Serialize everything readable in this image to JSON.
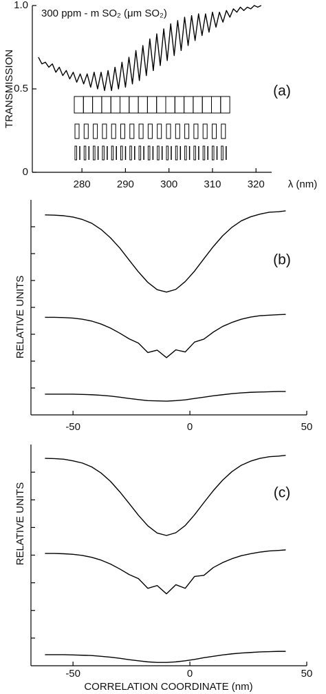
{
  "chart_data": [
    {
      "type": "line",
      "title": "300 ppm - m SO₂ (μm SO₂)",
      "y_label": "TRANSMISSION",
      "x_label": "λ (nm)",
      "annotation": "(a)",
      "x": [
        270.0,
        270.8,
        271.6,
        272.4,
        273.2,
        274.0,
        274.8,
        275.6,
        276.4,
        277.2,
        278.0,
        278.8,
        279.6,
        280.4,
        281.2,
        282.0,
        282.8,
        283.6,
        284.4,
        285.2,
        286.0,
        286.8,
        287.6,
        288.4,
        289.2,
        290.0,
        290.8,
        291.6,
        292.4,
        293.2,
        294.0,
        294.8,
        295.6,
        296.4,
        297.2,
        298.0,
        298.8,
        299.6,
        300.4,
        301.2,
        302.0,
        302.8,
        303.6,
        304.4,
        305.2,
        306.0,
        306.8,
        307.6,
        308.4,
        309.2,
        310.0,
        310.8,
        311.6,
        312.4,
        313.2,
        314.0,
        314.8,
        315.6,
        316.4,
        317.2,
        318.0,
        318.8,
        319.6,
        320.4,
        321.2
      ],
      "series": [
        {
          "color": "#000000",
          "values": [
            0.69,
            0.65,
            0.66,
            0.63,
            0.65,
            0.6,
            0.63,
            0.58,
            0.61,
            0.56,
            0.6,
            0.54,
            0.59,
            0.53,
            0.59,
            0.51,
            0.6,
            0.5,
            0.6,
            0.49,
            0.61,
            0.49,
            0.63,
            0.5,
            0.66,
            0.51,
            0.69,
            0.53,
            0.73,
            0.55,
            0.76,
            0.58,
            0.8,
            0.61,
            0.83,
            0.64,
            0.86,
            0.67,
            0.89,
            0.7,
            0.91,
            0.73,
            0.93,
            0.76,
            0.94,
            0.79,
            0.95,
            0.82,
            0.95,
            0.84,
            0.96,
            0.87,
            0.96,
            0.9,
            0.97,
            0.93,
            0.98,
            0.96,
            0.99,
            0.97,
            0.99,
            0.98,
            1.0,
            0.99,
            1.0
          ]
        }
      ],
      "xlim": [
        268.6,
        323.6
      ],
      "xticks": [
        280,
        290,
        300,
        310,
        320
      ],
      "ylim": [
        0,
        1
      ],
      "yticks": [
        0,
        0.5,
        {
          "value": 1,
          "label": "1.0"
        }
      ]
    },
    {
      "type": "line",
      "y_label": "RELATIVE UNITS",
      "annotation": "(b)",
      "x": [
        -62,
        -58,
        -54,
        -50,
        -46,
        -42,
        -38,
        -34,
        -30,
        -26,
        -22,
        -18,
        -14,
        -10,
        -6,
        -2,
        2,
        6,
        10,
        14,
        18,
        22,
        26,
        30,
        34,
        38,
        41
      ],
      "series": [
        {
          "color": "#000000",
          "values": [
            7.44,
            7.43,
            7.41,
            7.36,
            7.27,
            7.13,
            6.9,
            6.59,
            6.21,
            5.76,
            5.32,
            4.93,
            4.66,
            4.57,
            4.67,
            4.96,
            5.35,
            5.81,
            6.26,
            6.66,
            6.98,
            7.22,
            7.37,
            7.47,
            7.54,
            7.56,
            7.59
          ]
        },
        {
          "color": "#000000",
          "values": [
            3.63,
            3.63,
            3.62,
            3.6,
            3.56,
            3.49,
            3.38,
            3.23,
            3.04,
            2.83,
            2.67,
            2.32,
            2.41,
            2.13,
            2.42,
            2.34,
            2.71,
            2.82,
            3.08,
            3.29,
            3.44,
            3.56,
            3.64,
            3.69,
            3.71,
            3.73,
            3.74
          ]
        },
        {
          "color": "#000000",
          "values": [
            0.77,
            0.77,
            0.77,
            0.77,
            0.76,
            0.75,
            0.73,
            0.7,
            0.66,
            0.61,
            0.57,
            0.53,
            0.52,
            0.51,
            0.53,
            0.56,
            0.61,
            0.66,
            0.71,
            0.75,
            0.79,
            0.82,
            0.84,
            0.85,
            0.86,
            0.87,
            0.87
          ]
        }
      ],
      "xlim": [
        -68,
        50
      ],
      "xticks": [
        -50,
        0,
        50
      ],
      "ylim": [
        0,
        8
      ],
      "yticks": [
        1,
        2,
        3,
        4,
        5,
        6,
        7
      ]
    },
    {
      "type": "line",
      "y_label": "RELATIVE UNITS",
      "x_label": "CORRELATION COORDINATE (nm)",
      "annotation": "(c)",
      "x": [
        -62,
        -58,
        -54,
        -50,
        -46,
        -42,
        -38,
        -34,
        -30,
        -26,
        -22,
        -18,
        -14,
        -10,
        -6,
        -2,
        2,
        6,
        10,
        14,
        18,
        22,
        26,
        30,
        34,
        38,
        41
      ],
      "series": [
        {
          "color": "#000000",
          "values": [
            7.5,
            7.49,
            7.47,
            7.41,
            7.33,
            7.19,
            6.97,
            6.67,
            6.29,
            5.87,
            5.44,
            5.06,
            4.8,
            4.71,
            4.81,
            5.07,
            5.46,
            5.9,
            6.33,
            6.71,
            7.02,
            7.25,
            7.4,
            7.5,
            7.56,
            7.58,
            7.61
          ]
        },
        {
          "color": "#000000",
          "values": [
            4.06,
            4.06,
            4.05,
            4.03,
            3.99,
            3.92,
            3.82,
            3.68,
            3.5,
            3.3,
            3.15,
            2.8,
            2.9,
            2.6,
            2.93,
            2.8,
            3.23,
            3.27,
            3.55,
            3.73,
            3.87,
            3.98,
            4.05,
            4.11,
            4.15,
            4.17,
            4.19
          ]
        },
        {
          "color": "#000000",
          "values": [
            0.4,
            0.4,
            0.4,
            0.39,
            0.38,
            0.37,
            0.34,
            0.31,
            0.27,
            0.22,
            0.18,
            0.14,
            0.12,
            0.12,
            0.14,
            0.18,
            0.23,
            0.29,
            0.34,
            0.39,
            0.43,
            0.46,
            0.48,
            0.5,
            0.51,
            0.52,
            0.52
          ]
        }
      ],
      "xlim": [
        -68,
        50
      ],
      "xticks": [
        -50,
        0,
        50
      ],
      "ylim": [
        0,
        8
      ],
      "yticks": [
        1,
        2,
        3,
        4,
        5,
        6,
        7
      ]
    }
  ]
}
